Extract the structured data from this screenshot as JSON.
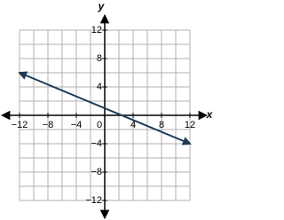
{
  "chart_data": {
    "type": "line",
    "x_label": "x",
    "y_label": "y",
    "xlim": [
      -12,
      12
    ],
    "ylim": [
      -12,
      12
    ],
    "xticks": [
      {
        "value": -12,
        "label": "−12"
      },
      {
        "value": -8,
        "label": "−8"
      },
      {
        "value": -4,
        "label": "−4"
      },
      0,
      4,
      8,
      12
    ],
    "yticks": [
      {
        "value": -12,
        "label": "−12"
      },
      {
        "value": -8,
        "label": "−8"
      },
      {
        "value": -4,
        "label": "−4"
      },
      4,
      8,
      12
    ],
    "grid": true,
    "grid_step": 2,
    "x": [
      -12,
      12
    ],
    "series": [
      {
        "color": "#1e3a56",
        "values": [
          6,
          -4
        ]
      }
    ]
  }
}
